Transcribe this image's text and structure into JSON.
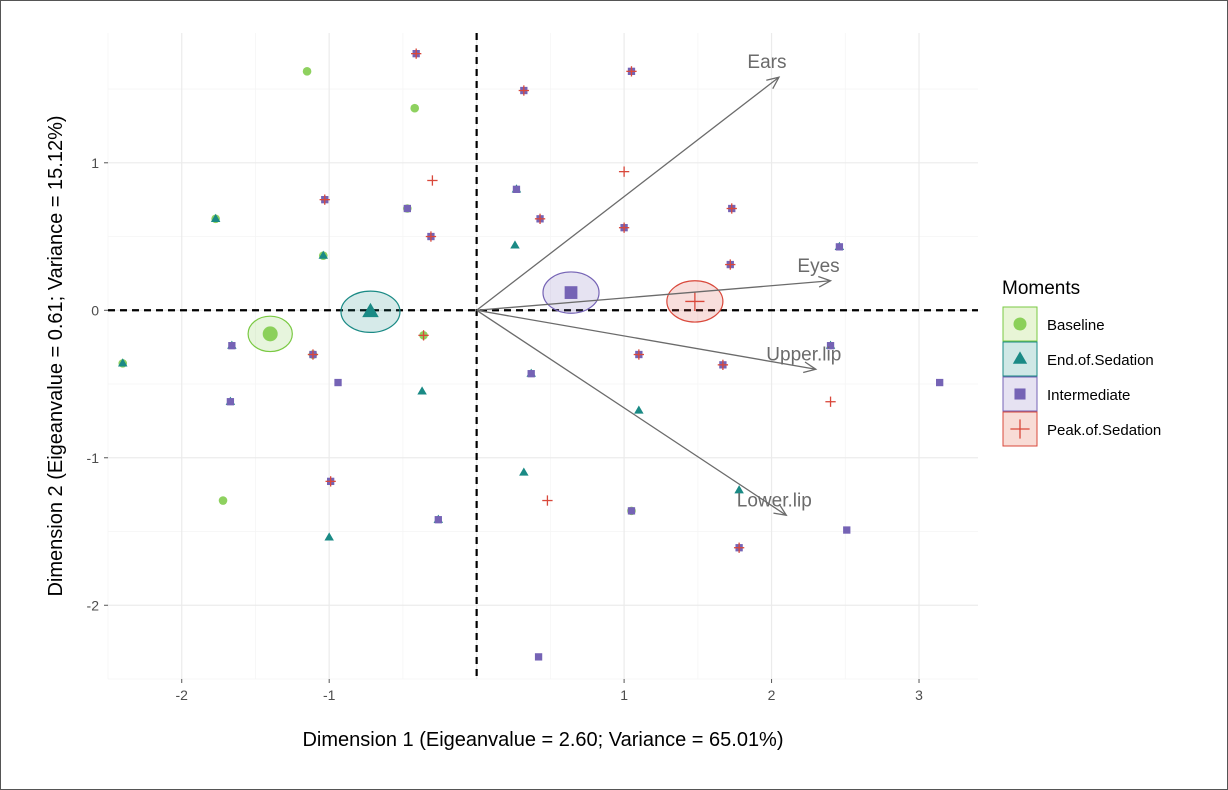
{
  "chart_data": {
    "type": "scatter",
    "title": "",
    "xlabel": "Dimension 1 (Eigeanvalue = 2.60; Variance = 65.01%)",
    "ylabel": "Dimension 2 (Eigeanvalue = 0.61; Variance = 15.12%)",
    "xlim": [
      -2.5,
      3.4
    ],
    "ylim": [
      -2.5,
      1.88
    ],
    "x_ticks": [
      {
        "value": -2,
        "label": "-2"
      },
      {
        "value": -1,
        "label": "-1"
      },
      {
        "value": 1,
        "label": "1"
      },
      {
        "value": 2,
        "label": "2"
      },
      {
        "value": 3,
        "label": "3"
      }
    ],
    "y_ticks": [
      {
        "value": 1,
        "label": "1"
      },
      {
        "value": 0,
        "label": "0"
      },
      {
        "value": -1,
        "label": "-1"
      },
      {
        "value": -2,
        "label": "-2"
      }
    ],
    "grid": true,
    "reference_lines": {
      "x": 0,
      "y": 0,
      "style": "dashed"
    },
    "legend": {
      "title": "Moments",
      "position": "right",
      "entries": [
        {
          "name": "Baseline",
          "color": "#7ac943",
          "fill": "#e8f5d6",
          "shape": "circle"
        },
        {
          "name": "End.of.Sedation",
          "color": "#1a8a85",
          "fill": "#cfe8e6",
          "shape": "triangle"
        },
        {
          "name": "Intermediate",
          "color": "#7563b5",
          "fill": "#e6e2f2",
          "shape": "square"
        },
        {
          "name": "Peak.of.Sedation",
          "color": "#d9483b",
          "fill": "#f8dcd6",
          "shape": "plus"
        }
      ]
    },
    "variables": [
      {
        "name": "Ears",
        "x": 2.05,
        "y": 1.58
      },
      {
        "name": "Eyes",
        "x": 2.4,
        "y": 0.2
      },
      {
        "name": "Upper.lip",
        "x": 2.3,
        "y": -0.4
      },
      {
        "name": "Lower.lip",
        "x": 2.1,
        "y": -1.39
      }
    ],
    "centroids": [
      {
        "group": "Baseline",
        "x": -1.4,
        "y": -0.16,
        "rx": 0.15,
        "ry": 0.12
      },
      {
        "group": "End.of.Sedation",
        "x": -0.72,
        "y": -0.01,
        "rx": 0.2,
        "ry": 0.14
      },
      {
        "group": "Intermediate",
        "x": 0.64,
        "y": 0.12,
        "rx": 0.19,
        "ry": 0.14
      },
      {
        "group": "Peak.of.Sedation",
        "x": 1.48,
        "y": 0.06,
        "rx": 0.19,
        "ry": 0.14
      }
    ],
    "points": [
      {
        "x": -0.41,
        "y": 1.74,
        "groups": [
          "Intermediate",
          "Peak.of.Sedation"
        ]
      },
      {
        "x": -1.15,
        "y": 1.62,
        "groups": [
          "Baseline"
        ]
      },
      {
        "x": -0.42,
        "y": 1.37,
        "groups": [
          "Baseline"
        ]
      },
      {
        "x": 0.32,
        "y": 1.49,
        "groups": [
          "Intermediate",
          "Peak.of.Sedation"
        ]
      },
      {
        "x": 1.05,
        "y": 1.62,
        "groups": [
          "Intermediate",
          "Peak.of.Sedation"
        ]
      },
      {
        "x": -0.3,
        "y": 0.88,
        "groups": [
          "Peak.of.Sedation"
        ]
      },
      {
        "x": 1.0,
        "y": 0.94,
        "groups": [
          "Peak.of.Sedation"
        ]
      },
      {
        "x": -1.77,
        "y": 0.62,
        "groups": [
          "Baseline",
          "End.of.Sedation"
        ]
      },
      {
        "x": -1.03,
        "y": 0.75,
        "groups": [
          "Intermediate",
          "Peak.of.Sedation"
        ]
      },
      {
        "x": -0.47,
        "y": 0.69,
        "groups": [
          "Baseline",
          "Intermediate"
        ]
      },
      {
        "x": 0.27,
        "y": 0.82,
        "groups": [
          "End.of.Sedation",
          "Intermediate"
        ]
      },
      {
        "x": 0.43,
        "y": 0.62,
        "groups": [
          "Intermediate",
          "Peak.of.Sedation"
        ]
      },
      {
        "x": 1.0,
        "y": 0.56,
        "groups": [
          "Intermediate",
          "Peak.of.Sedation"
        ]
      },
      {
        "x": 1.73,
        "y": 0.69,
        "groups": [
          "Intermediate",
          "Peak.of.Sedation"
        ]
      },
      {
        "x": -0.31,
        "y": 0.5,
        "groups": [
          "Intermediate",
          "Peak.of.Sedation"
        ]
      },
      {
        "x": -1.04,
        "y": 0.37,
        "groups": [
          "Baseline",
          "End.of.Sedation"
        ]
      },
      {
        "x": 0.26,
        "y": 0.44,
        "groups": [
          "End.of.Sedation"
        ]
      },
      {
        "x": 2.46,
        "y": 0.43,
        "groups": [
          "End.of.Sedation",
          "Intermediate"
        ]
      },
      {
        "x": 1.72,
        "y": 0.31,
        "groups": [
          "Intermediate",
          "Peak.of.Sedation"
        ]
      },
      {
        "x": -2.4,
        "y": -0.36,
        "groups": [
          "Baseline",
          "End.of.Sedation"
        ]
      },
      {
        "x": -1.66,
        "y": -0.24,
        "groups": [
          "End.of.Sedation",
          "Intermediate"
        ]
      },
      {
        "x": -1.11,
        "y": -0.3,
        "groups": [
          "Baseline",
          "Intermediate",
          "Peak.of.Sedation"
        ]
      },
      {
        "x": -0.36,
        "y": -0.17,
        "groups": [
          "Baseline",
          "Peak.of.Sedation"
        ]
      },
      {
        "x": -0.94,
        "y": -0.49,
        "groups": [
          "Intermediate"
        ]
      },
      {
        "x": -0.37,
        "y": -0.55,
        "groups": [
          "End.of.Sedation"
        ]
      },
      {
        "x": 0.37,
        "y": -0.43,
        "groups": [
          "End.of.Sedation",
          "Intermediate"
        ]
      },
      {
        "x": 1.1,
        "y": -0.3,
        "groups": [
          "Intermediate",
          "Peak.of.Sedation"
        ]
      },
      {
        "x": 1.67,
        "y": -0.37,
        "groups": [
          "Intermediate",
          "Peak.of.Sedation"
        ]
      },
      {
        "x": 2.4,
        "y": -0.24,
        "groups": [
          "End.of.Sedation",
          "Intermediate"
        ]
      },
      {
        "x": 3.14,
        "y": -0.49,
        "groups": [
          "Intermediate"
        ]
      },
      {
        "x": 2.4,
        "y": -0.62,
        "groups": [
          "Peak.of.Sedation"
        ]
      },
      {
        "x": -1.67,
        "y": -0.62,
        "groups": [
          "End.of.Sedation",
          "Intermediate"
        ]
      },
      {
        "x": 1.1,
        "y": -0.68,
        "groups": [
          "End.of.Sedation"
        ]
      },
      {
        "x": -1.72,
        "y": -1.29,
        "groups": [
          "Baseline"
        ]
      },
      {
        "x": -0.99,
        "y": -1.16,
        "groups": [
          "Intermediate",
          "Peak.of.Sedation"
        ]
      },
      {
        "x": -0.26,
        "y": -1.42,
        "groups": [
          "End.of.Sedation",
          "Intermediate"
        ]
      },
      {
        "x": 0.32,
        "y": -1.1,
        "groups": [
          "End.of.Sedation"
        ]
      },
      {
        "x": 0.48,
        "y": -1.29,
        "groups": [
          "Peak.of.Sedation"
        ]
      },
      {
        "x": 1.05,
        "y": -1.36,
        "groups": [
          "Baseline",
          "Intermediate"
        ]
      },
      {
        "x": 1.78,
        "y": -1.22,
        "groups": [
          "End.of.Sedation"
        ]
      },
      {
        "x": -1.0,
        "y": -1.54,
        "groups": [
          "End.of.Sedation"
        ]
      },
      {
        "x": 1.78,
        "y": -1.61,
        "groups": [
          "Intermediate",
          "Peak.of.Sedation"
        ]
      },
      {
        "x": 2.51,
        "y": -1.49,
        "groups": [
          "Intermediate"
        ]
      },
      {
        "x": 0.42,
        "y": -2.35,
        "groups": [
          "Intermediate"
        ]
      }
    ]
  }
}
